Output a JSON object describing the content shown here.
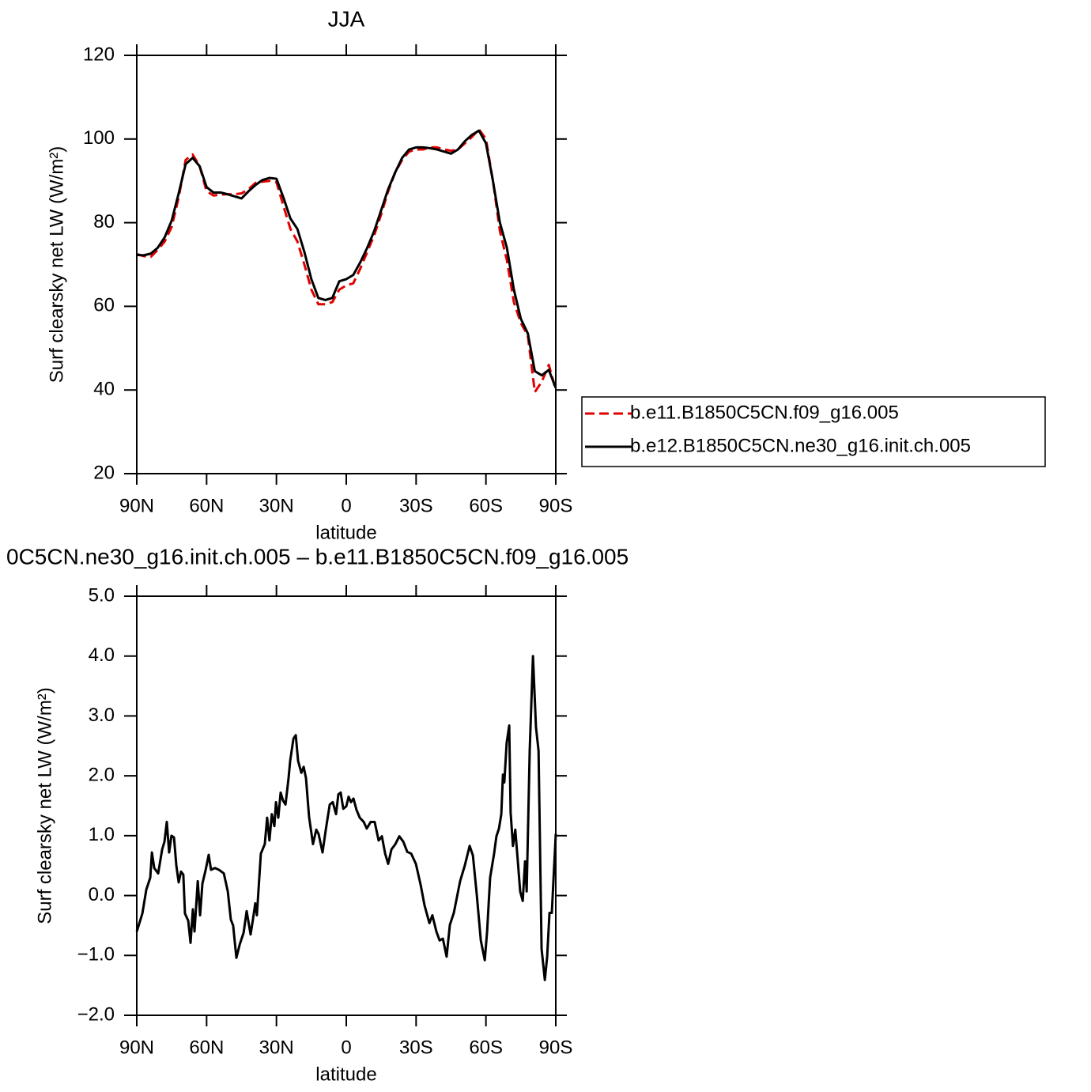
{
  "chart_data": [
    {
      "type": "line",
      "title": "JJA",
      "xlabel": "latitude",
      "ylabel": "Surf clearsky net LW (W/m²)",
      "x": [
        90,
        87,
        84,
        81,
        78,
        75,
        72,
        69,
        66,
        63,
        60,
        57,
        54,
        51,
        48,
        45,
        42,
        39,
        36,
        33,
        30,
        27,
        24,
        21,
        18,
        15,
        12,
        9,
        6,
        3,
        0,
        -3,
        -6,
        -9,
        -12,
        -15,
        -18,
        -21,
        -24,
        -27,
        -30,
        -33,
        -36,
        -39,
        -42,
        -45,
        -48,
        -51,
        -54,
        -57,
        -60,
        -63,
        -66,
        -69,
        -72,
        -75,
        -78,
        -81,
        -84,
        -87,
        -90
      ],
      "xlim": [
        90,
        -90
      ],
      "xticks": [
        {
          "value": 90,
          "label": "90N"
        },
        {
          "value": 60,
          "label": "60N"
        },
        {
          "value": 30,
          "label": "30N"
        },
        0,
        {
          "value": -30,
          "label": "30S"
        },
        {
          "value": -60,
          "label": "60S"
        },
        {
          "value": -90,
          "label": "90S"
        }
      ],
      "ylim": [
        20,
        120
      ],
      "yticks": [
        20,
        40,
        60,
        80,
        100,
        120
      ],
      "legend": "right",
      "series": [
        {
          "name": "b.e11.B1850C5CN.f09_g16.005",
          "color": "#e00000",
          "style": "dashed",
          "values": [
            72.5,
            72,
            71.8,
            73.5,
            75.5,
            79,
            86,
            95,
            96.3,
            93.5,
            87.5,
            86.5,
            86.7,
            86.8,
            86.8,
            87,
            88,
            89.5,
            89.8,
            90,
            89.7,
            84,
            78.5,
            75.5,
            70,
            64,
            60.5,
            60.5,
            61,
            64,
            65,
            65.5,
            69,
            73,
            77,
            82,
            87.5,
            92,
            95,
            97,
            97.5,
            97.5,
            98,
            98,
            97.5,
            97.2,
            97.5,
            99,
            100.5,
            102.3,
            100,
            90,
            78,
            71,
            61,
            56,
            53,
            39.5,
            42,
            46,
            40
          ]
        },
        {
          "name": "b.e12.B1850C5CN.ne30_g16.init.ch.005",
          "color": "#000000",
          "style": "solid",
          "values": [
            72.3,
            72.2,
            72.6,
            74.0,
            76.5,
            80.5,
            87,
            94,
            95.5,
            93.5,
            88.5,
            87.2,
            87.2,
            86.8,
            86.3,
            85.8,
            87.5,
            89,
            90.2,
            90.7,
            90.5,
            86,
            81,
            78.5,
            73,
            66.5,
            62,
            61.5,
            62,
            66,
            66.5,
            67.5,
            70.5,
            74,
            78,
            83,
            88,
            92,
            95.5,
            97.5,
            98,
            98,
            97.8,
            97.5,
            97,
            96.5,
            97.5,
            99.5,
            101,
            102,
            99,
            90,
            80,
            74,
            64,
            57,
            53.5,
            44.5,
            43.5,
            44.8,
            40.5
          ]
        }
      ]
    },
    {
      "type": "line",
      "title": "0C5CN.ne30_g16.init.ch.005 – b.e11.B1850C5CN.f09_g16.005",
      "xlabel": "latitude",
      "ylabel": "Surf clearsky net LW (W/m²)",
      "x": [
        90,
        87.6,
        85.9,
        84.2,
        83.5,
        82.5,
        80.8,
        79.1,
        78.1,
        77.1,
        76.1,
        75.1,
        74,
        73,
        72,
        71,
        70,
        69.3,
        67.9,
        66.9,
        65.9,
        65.2,
        63.8,
        62.8,
        61.8,
        60.4,
        59.1,
        58.1,
        56.4,
        54.7,
        52.6,
        50.9,
        49.6,
        48.6,
        47.2,
        45.8,
        44.1,
        42.8,
        41.1,
        40.1,
        39.1,
        38.4,
        36.7,
        35,
        34,
        33,
        32,
        30.9,
        30.2,
        29.2,
        28.2,
        27.2,
        26.1,
        24.8,
        24.1,
        22.7,
        21.7,
        20.7,
        19.3,
        18.3,
        17.3,
        16,
        14.3,
        12.9,
        11.9,
        10.2,
        8.8,
        7.1,
        5.8,
        4.4,
        3.4,
        2.4,
        1.3,
        0,
        -1,
        -2,
        -3.1,
        -4.4,
        -5.8,
        -7.5,
        -8.8,
        -10.5,
        -12.2,
        -13.9,
        -15.3,
        -16.7,
        -18,
        -19.4,
        -21.1,
        -22.8,
        -24.5,
        -26.2,
        -27.9,
        -29.9,
        -32,
        -33.6,
        -35.7,
        -37,
        -38.7,
        -40.1,
        -41.5,
        -43.1,
        -44.5,
        -46.2,
        -48.9,
        -50.9,
        -53,
        -54.4,
        -56,
        -57.8,
        -59.5,
        -60.5,
        -61.8,
        -63.5,
        -64.5,
        -65.6,
        -66.6,
        -67.3,
        -67.9,
        -68.9,
        -70,
        -70.6,
        -71.6,
        -72.6,
        -73.7,
        -74.7,
        -75.8,
        -76.8,
        -77.5,
        -78.8,
        -80.2,
        -81.5,
        -82.6,
        -83.9,
        -85.3,
        -86.3,
        -87.3,
        -88.3,
        -90
      ],
      "xlim": [
        90,
        -90
      ],
      "xticks": [
        {
          "value": 90,
          "label": "90N"
        },
        {
          "value": 60,
          "label": "60N"
        },
        {
          "value": 30,
          "label": "30N"
        },
        0,
        {
          "value": -30,
          "label": "30S"
        },
        {
          "value": -60,
          "label": "60S"
        },
        {
          "value": -90,
          "label": "90S"
        }
      ],
      "ylim": [
        -2,
        5
      ],
      "yticks": [
        {
          "value": -2,
          "label": "−2.0"
        },
        {
          "value": -1,
          "label": "−1.0"
        },
        {
          "value": 0,
          "label": "0.0"
        },
        {
          "value": 1,
          "label": "1.0"
        },
        {
          "value": 2,
          "label": "2.0"
        },
        {
          "value": 3,
          "label": "3.0"
        },
        {
          "value": 4,
          "label": "4.0"
        },
        {
          "value": 5,
          "label": "5.0"
        }
      ],
      "series": [
        {
          "color": "#000000",
          "style": "solid",
          "values": [
            -0.6,
            -0.3,
            0.1,
            0.3,
            0.72,
            0.46,
            0.37,
            0.77,
            0.9,
            1.23,
            0.72,
            1.0,
            0.97,
            0.5,
            0.22,
            0.4,
            0.35,
            -0.3,
            -0.42,
            -0.79,
            -0.23,
            -0.6,
            0.24,
            -0.33,
            0.2,
            0.43,
            0.68,
            0.43,
            0.46,
            0.43,
            0.37,
            0.07,
            -0.4,
            -0.5,
            -1.04,
            -0.82,
            -0.62,
            -0.26,
            -0.65,
            -0.4,
            -0.13,
            -0.33,
            0.7,
            0.86,
            1.3,
            0.92,
            1.36,
            1.16,
            1.56,
            1.3,
            1.72,
            1.59,
            1.52,
            1.96,
            2.25,
            2.62,
            2.68,
            2.25,
            2.05,
            2.15,
            1.96,
            1.32,
            0.86,
            1.1,
            1.03,
            0.72,
            1.1,
            1.52,
            1.56,
            1.36,
            1.69,
            1.72,
            1.45,
            1.49,
            1.65,
            1.56,
            1.62,
            1.43,
            1.3,
            1.23,
            1.12,
            1.23,
            1.23,
            0.92,
            0.99,
            0.7,
            0.53,
            0.77,
            0.86,
            0.99,
            0.9,
            0.73,
            0.7,
            0.53,
            0.17,
            -0.16,
            -0.46,
            -0.33,
            -0.6,
            -0.75,
            -0.72,
            -1.02,
            -0.49,
            -0.29,
            0.24,
            0.5,
            0.83,
            0.67,
            0.04,
            -0.75,
            -1.08,
            -0.6,
            0.3,
            0.7,
            0.99,
            1.12,
            1.36,
            2.02,
            1.89,
            2.55,
            2.84,
            1.39,
            0.83,
            1.1,
            0.57,
            0.07,
            -0.09,
            0.57,
            0.07,
            2.42,
            4.0,
            2.81,
            2.42,
            -0.89,
            -1.41,
            -1.02,
            -0.29,
            -0.29,
            1.03
          ]
        }
      ]
    }
  ]
}
